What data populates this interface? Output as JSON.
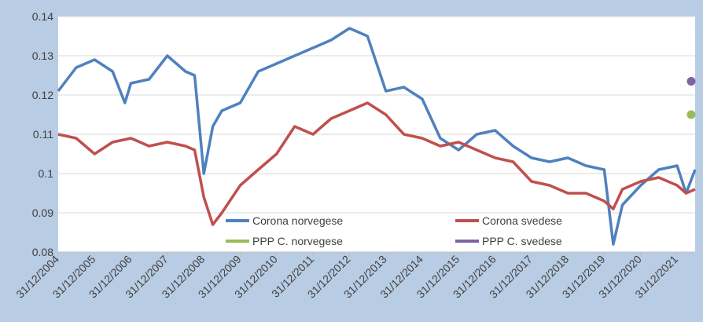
{
  "chart_data": {
    "type": "line",
    "title": "",
    "xlabel": "",
    "ylabel": "",
    "ylim": [
      0.08,
      0.14
    ],
    "y_ticks": [
      "0.08",
      "0.09",
      "0.1",
      "0.11",
      "0.12",
      "0.13",
      "0.14"
    ],
    "x_tick_labels": [
      "31/12/2004",
      "31/12/2005",
      "31/12/2006",
      "31/12/2007",
      "31/12/2008",
      "31/12/2009",
      "31/12/2010",
      "31/12/2011",
      "31/12/2012",
      "31/12/2013",
      "31/12/2014",
      "31/12/2015",
      "31/12/2016",
      "31/12/2017",
      "31/12/2018",
      "31/12/2019",
      "31/12/2020",
      "31/12/2021"
    ],
    "x_range": [
      "31/12/2004",
      "30/06/2022"
    ],
    "grid": "horizontal",
    "legend": "bottom, inside plot",
    "series": [
      {
        "name": "Corona norvegese",
        "color": "#4f81bd",
        "points": [
          [
            "31/12/2004",
            0.121
          ],
          [
            "30/06/2005",
            0.127
          ],
          [
            "31/12/2005",
            0.129
          ],
          [
            "30/06/2006",
            0.126
          ],
          [
            "31/10/2006",
            0.118
          ],
          [
            "31/12/2006",
            0.123
          ],
          [
            "30/06/2007",
            0.124
          ],
          [
            "31/12/2007",
            0.13
          ],
          [
            "30/06/2008",
            0.126
          ],
          [
            "30/09/2008",
            0.125
          ],
          [
            "31/12/2008",
            0.1
          ],
          [
            "31/03/2009",
            0.112
          ],
          [
            "30/06/2009",
            0.116
          ],
          [
            "31/12/2009",
            0.118
          ],
          [
            "30/06/2010",
            0.126
          ],
          [
            "31/12/2010",
            0.128
          ],
          [
            "30/06/2011",
            0.13
          ],
          [
            "31/12/2011",
            0.132
          ],
          [
            "30/06/2012",
            0.134
          ],
          [
            "31/12/2012",
            0.137
          ],
          [
            "30/06/2013",
            0.135
          ],
          [
            "31/12/2013",
            0.121
          ],
          [
            "30/06/2014",
            0.122
          ],
          [
            "31/12/2014",
            0.119
          ],
          [
            "30/06/2015",
            0.109
          ],
          [
            "31/12/2015",
            0.106
          ],
          [
            "30/06/2016",
            0.11
          ],
          [
            "31/12/2016",
            0.111
          ],
          [
            "30/06/2017",
            0.107
          ],
          [
            "31/12/2017",
            0.104
          ],
          [
            "30/06/2018",
            0.103
          ],
          [
            "31/12/2018",
            0.104
          ],
          [
            "30/06/2019",
            0.102
          ],
          [
            "31/12/2019",
            0.101
          ],
          [
            "31/03/2020",
            0.082
          ],
          [
            "30/06/2020",
            0.092
          ],
          [
            "31/12/2020",
            0.097
          ],
          [
            "30/06/2021",
            0.101
          ],
          [
            "31/12/2021",
            0.102
          ],
          [
            "31/03/2022",
            0.095
          ],
          [
            "30/06/2022",
            0.101
          ]
        ]
      },
      {
        "name": "Corona svedese",
        "color": "#c0504d",
        "points": [
          [
            "31/12/2004",
            0.11
          ],
          [
            "30/06/2005",
            0.109
          ],
          [
            "31/12/2005",
            0.105
          ],
          [
            "30/06/2006",
            0.108
          ],
          [
            "31/12/2006",
            0.109
          ],
          [
            "30/06/2007",
            0.107
          ],
          [
            "31/12/2007",
            0.108
          ],
          [
            "30/06/2008",
            0.107
          ],
          [
            "30/09/2008",
            0.106
          ],
          [
            "31/12/2008",
            0.094
          ],
          [
            "31/03/2009",
            0.087
          ],
          [
            "30/06/2009",
            0.09
          ],
          [
            "31/12/2009",
            0.097
          ],
          [
            "30/06/2010",
            0.101
          ],
          [
            "31/12/2010",
            0.105
          ],
          [
            "30/06/2011",
            0.112
          ],
          [
            "31/12/2011",
            0.11
          ],
          [
            "30/06/2012",
            0.114
          ],
          [
            "31/12/2012",
            0.116
          ],
          [
            "30/06/2013",
            0.118
          ],
          [
            "31/12/2013",
            0.115
          ],
          [
            "30/06/2014",
            0.11
          ],
          [
            "31/12/2014",
            0.109
          ],
          [
            "30/06/2015",
            0.107
          ],
          [
            "31/12/2015",
            0.108
          ],
          [
            "30/06/2016",
            0.106
          ],
          [
            "31/12/2016",
            0.104
          ],
          [
            "30/06/2017",
            0.103
          ],
          [
            "31/12/2017",
            0.098
          ],
          [
            "30/06/2018",
            0.097
          ],
          [
            "31/12/2018",
            0.095
          ],
          [
            "30/06/2019",
            0.095
          ],
          [
            "31/12/2019",
            0.093
          ],
          [
            "31/03/2020",
            0.091
          ],
          [
            "30/06/2020",
            0.096
          ],
          [
            "31/12/2020",
            0.098
          ],
          [
            "30/06/2021",
            0.099
          ],
          [
            "31/12/2021",
            0.097
          ],
          [
            "31/03/2022",
            0.095
          ],
          [
            "30/06/2022",
            0.096
          ]
        ]
      },
      {
        "name": "PPP C. norvegese",
        "color": "#9bbb59",
        "points": [
          [
            "30/06/2022",
            0.115
          ]
        ]
      },
      {
        "name": "PPP C. svedese",
        "color": "#8064a2",
        "points": [
          [
            "30/06/2022",
            0.1235
          ]
        ]
      }
    ]
  }
}
